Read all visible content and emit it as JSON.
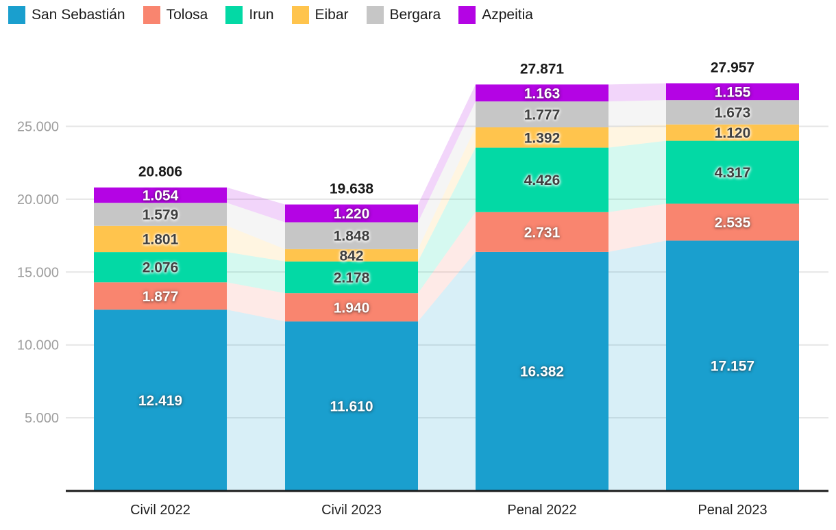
{
  "chart_data": {
    "type": "bar",
    "stacked": true,
    "orientation": "vertical",
    "title": "",
    "xlabel": "",
    "ylabel": "",
    "categories": [
      "Civil 2022",
      "Civil 2023",
      "Penal 2022",
      "Penal 2023"
    ],
    "series": [
      {
        "name": "San Sebastián",
        "color": "#1A9FCE",
        "label_style": "light",
        "values": [
          12419,
          11610,
          16382,
          17157
        ],
        "value_labels": [
          "12.419",
          "11.610",
          "16.382",
          "17.157"
        ]
      },
      {
        "name": "Tolosa",
        "color": "#F9856F",
        "label_style": "light",
        "values": [
          1877,
          1940,
          2731,
          2535
        ],
        "value_labels": [
          "1.877",
          "1.940",
          "2.731",
          "2.535"
        ]
      },
      {
        "name": "Irun",
        "color": "#03D9A5",
        "label_style": "dark",
        "values": [
          2076,
          2178,
          4426,
          4317
        ],
        "value_labels": [
          "2.076",
          "2.178",
          "4.426",
          "4.317"
        ]
      },
      {
        "name": "Eibar",
        "color": "#FFC44D",
        "label_style": "dark",
        "values": [
          1801,
          842,
          1392,
          1120
        ],
        "value_labels": [
          "1.801",
          "842",
          "1.392",
          "1.120"
        ]
      },
      {
        "name": "Bergara",
        "color": "#C6C6C6",
        "label_style": "dark",
        "values": [
          1579,
          1848,
          1777,
          1673
        ],
        "value_labels": [
          "1.579",
          "1.848",
          "1.777",
          "1.673"
        ]
      },
      {
        "name": "Azpeitia",
        "color": "#B404E4",
        "label_style": "light",
        "values": [
          1054,
          1220,
          1163,
          1155
        ],
        "value_labels": [
          "1.054",
          "1.220",
          "1.163",
          "1.155"
        ]
      }
    ],
    "totals": [
      20806,
      19638,
      27871,
      27957
    ],
    "total_labels": [
      "20.806",
      "19.638",
      "27.871",
      "27.957"
    ],
    "y_ticks": [
      5000,
      10000,
      15000,
      20000,
      25000
    ],
    "y_tick_labels": [
      "5.000",
      "10.000",
      "15.000",
      "20.000",
      "25.000"
    ],
    "ylim": [
      0,
      28000
    ],
    "grid": true,
    "legend_position": "top-left",
    "connectors": true
  },
  "colors": {
    "background": "#FFFFFF",
    "axis_line": "#1A1A1A",
    "gridline": "#E5E5E5",
    "tick_label": "#9E9E9E",
    "category_label": "#1F1F1F",
    "total_label": "#1A1A1A"
  }
}
